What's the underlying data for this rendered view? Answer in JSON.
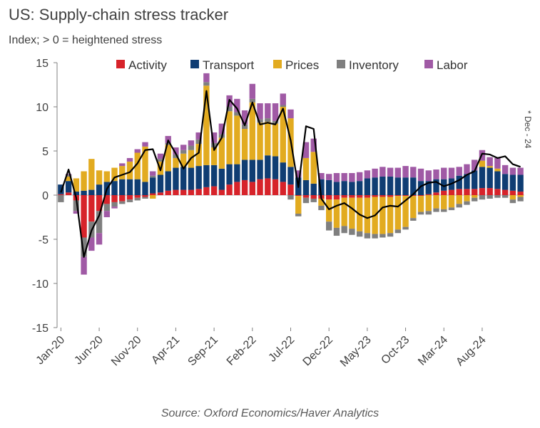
{
  "chart_data": {
    "type": "bar",
    "stacked": true,
    "title": "US: Supply-chain stress tracker",
    "subtitle": "Index; > 0 = heightened stress",
    "source": "Source: Oxford Economics/Haver Analytics",
    "annotation": "* Dec - 24",
    "ylim": [
      -15,
      15
    ],
    "yticks": [
      15,
      10,
      5,
      0,
      -5,
      -10,
      -15
    ],
    "xtick_labels": [
      "Jan-20",
      "Jun-20",
      "Nov-20",
      "Apr-21",
      "Sep-21",
      "Feb-22",
      "Jul-22",
      "Dec-22",
      "May-23",
      "Oct-23",
      "Mar-24",
      "Aug-24"
    ],
    "xtick_index": [
      0,
      5,
      10,
      15,
      20,
      25,
      30,
      35,
      40,
      45,
      50,
      55
    ],
    "legend_position": "top",
    "colors": {
      "Activity": "#d7232a",
      "Transport": "#0f3d73",
      "Prices": "#e2ab20",
      "Inventory": "#7f7f7f",
      "Labor": "#a05aa5",
      "total_line": "#000000"
    },
    "series": [
      {
        "name": "Activity",
        "values": [
          0.1,
          0.3,
          -0.6,
          -4.8,
          -3.0,
          -1.8,
          -1.0,
          -0.8,
          -0.7,
          -0.5,
          -0.3,
          -0.2,
          0.2,
          0.3,
          0.5,
          0.6,
          0.6,
          0.6,
          0.7,
          0.9,
          1.0,
          0.6,
          1.2,
          1.5,
          1.7,
          1.5,
          1.8,
          1.9,
          1.8,
          1.5,
          1.2,
          -0.1,
          -0.3,
          -0.4,
          -0.4,
          -0.5,
          -0.5,
          -0.3,
          -0.3,
          -0.3,
          -0.3,
          -0.2,
          -0.2,
          -0.2,
          -0.1,
          -0.1,
          -0.1,
          -0.1,
          0.1,
          0.3,
          0.5,
          0.6,
          0.7,
          0.7,
          0.7,
          0.8,
          0.8,
          0.7,
          0.6,
          0.5,
          0.4
        ]
      },
      {
        "name": "Transport",
        "values": [
          1.1,
          1.3,
          0.4,
          0.5,
          0.6,
          1.2,
          1.5,
          1.6,
          1.8,
          1.8,
          1.8,
          1.5,
          1.8,
          2.0,
          2.2,
          2.5,
          2.6,
          2.5,
          2.6,
          2.5,
          2.4,
          2.4,
          2.3,
          2.0,
          2.3,
          2.5,
          2.2,
          2.6,
          2.6,
          2.2,
          2.0,
          2.0,
          1.7,
          1.3,
          1.8,
          1.7,
          1.5,
          1.6,
          1.5,
          1.6,
          1.9,
          2.0,
          2.1,
          2.1,
          2.0,
          2.0,
          2.0,
          1.6,
          1.5,
          1.5,
          1.3,
          1.3,
          1.5,
          1.7,
          2.1,
          2.4,
          2.3,
          2.0,
          1.8,
          1.8,
          1.9
        ]
      },
      {
        "name": "Prices",
        "values": [
          0.0,
          0.5,
          1.5,
          2.2,
          3.5,
          1.6,
          1.2,
          1.5,
          1.5,
          2.0,
          3.0,
          4.0,
          -0.4,
          1.5,
          3.0,
          1.1,
          1.5,
          2.0,
          2.5,
          9.0,
          2.0,
          3.5,
          6.0,
          5.5,
          3.5,
          6.5,
          4.2,
          3.8,
          3.7,
          6.3,
          5.5,
          -2.0,
          2.5,
          3.6,
          -0.8,
          -2.5,
          -3.2,
          -3.2,
          -3.5,
          -3.8,
          -4.0,
          -4.2,
          -4.2,
          -4.1,
          -3.8,
          -3.5,
          -2.5,
          -1.8,
          -1.8,
          -1.5,
          -1.6,
          -1.4,
          -1.0,
          -0.7,
          -0.3,
          0.7,
          0.2,
          0.3,
          0.0,
          -0.5,
          -0.2
        ]
      },
      {
        "name": "Inventory",
        "values": [
          -0.8,
          0.2,
          -1.2,
          -2.2,
          -1.8,
          -2.5,
          -0.8,
          -0.5,
          -0.3,
          -0.3,
          -0.3,
          -0.2,
          0.2,
          0.3,
          0.2,
          0.4,
          0.4,
          0.5,
          0.5,
          0.4,
          0.5,
          0.4,
          0.5,
          0.4,
          0.5,
          0.4,
          0.4,
          0.4,
          0.3,
          0.2,
          -0.5,
          -0.3,
          -0.6,
          -0.4,
          -0.5,
          -1.0,
          -0.9,
          -0.8,
          -0.7,
          -0.6,
          -0.6,
          -0.5,
          -0.4,
          -0.4,
          -0.4,
          -0.3,
          -0.3,
          -0.3,
          -0.4,
          -0.4,
          -0.3,
          -0.3,
          -0.4,
          -0.4,
          -0.4,
          -0.5,
          -0.4,
          -0.3,
          -0.3,
          -0.4,
          -0.5
        ]
      },
      {
        "name": "Labor",
        "values": [
          0.0,
          0.1,
          -0.3,
          -2.0,
          -1.5,
          -1.3,
          -0.7,
          -0.2,
          0.3,
          0.4,
          0.4,
          0.5,
          0.5,
          0.6,
          0.8,
          0.8,
          0.6,
          0.6,
          0.8,
          1.0,
          1.2,
          1.2,
          1.3,
          1.5,
          1.6,
          1.7,
          1.8,
          1.7,
          2.0,
          1.3,
          1.0,
          0.8,
          1.8,
          1.5,
          0.7,
          0.7,
          1.0,
          0.9,
          1.0,
          1.0,
          0.9,
          1.0,
          1.1,
          1.0,
          1.1,
          1.3,
          1.2,
          1.4,
          1.2,
          1.1,
          1.3,
          1.2,
          1.0,
          1.1,
          1.2,
          1.2,
          1.0,
          1.2,
          1.0,
          0.8,
          0.8
        ]
      }
    ],
    "total_line": [
      0.3,
      2.9,
      -0.3,
      -7.0,
      -4.0,
      -2.3,
      0.7,
      2.0,
      2.3,
      2.6,
      3.6,
      5.1,
      5.2,
      2.8,
      6.2,
      4.7,
      3.0,
      4.2,
      4.8,
      11.8,
      5.1,
      6.5,
      10.8,
      9.8,
      7.9,
      10.5,
      8.0,
      8.2,
      8.0,
      9.8,
      6.2,
      0.9,
      7.8,
      7.5,
      -0.4,
      -1.6,
      -1.2,
      -0.9,
      -1.5,
      -2.2,
      -2.6,
      -2.3,
      -1.4,
      -1.2,
      -1.3,
      -0.6,
      0.1,
      1.0,
      1.4,
      1.5,
      1.0,
      1.3,
      1.7,
      2.3,
      2.7,
      4.7,
      4.6,
      4.2,
      4.4,
      3.5,
      3.2
    ]
  }
}
